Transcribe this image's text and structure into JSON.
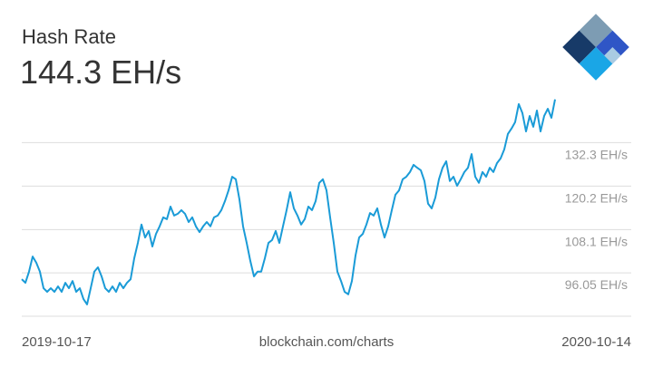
{
  "chart_data": {
    "type": "line",
    "title": "Hash Rate",
    "current_value": "144.3 EH/s",
    "source": "blockchain.com/charts",
    "xticks": [
      "2019-10-17",
      "2020-10-14"
    ],
    "color": "#1a9bd7",
    "values": [
      94.3,
      93.3,
      96.4,
      100.6,
      98.9,
      96.4,
      91.8,
      90.8,
      91.8,
      90.8,
      92.3,
      90.8,
      93.3,
      91.8,
      93.8,
      90.8,
      91.8,
      88.8,
      87.3,
      91.8,
      96.4,
      97.6,
      95.1,
      91.8,
      90.8,
      92.3,
      90.8,
      93.3,
      91.8,
      93.3,
      94.3,
      100.1,
      104.4,
      109.5,
      105.9,
      107.7,
      103.4,
      106.9,
      109.0,
      111.5,
      111.0,
      114.5,
      112.0,
      112.5,
      113.5,
      112.5,
      110.2,
      111.5,
      109.0,
      107.4,
      109.0,
      110.2,
      109.0,
      111.5,
      112.0,
      113.5,
      116.0,
      119.0,
      122.8,
      122.1,
      116.5,
      109.0,
      104.4,
      99.4,
      95.1,
      96.4,
      96.4,
      100.1,
      104.4,
      105.2,
      107.7,
      104.4,
      109.0,
      113.5,
      118.5,
      114.0,
      112.0,
      109.5,
      111.0,
      114.5,
      113.5,
      116.0,
      121.1,
      122.1,
      119.0,
      111.5,
      104.4,
      96.4,
      93.8,
      90.8,
      90.1,
      93.8,
      100.9,
      105.9,
      106.9,
      109.5,
      112.7,
      112.0,
      114.0,
      109.5,
      105.9,
      109.0,
      113.5,
      117.8,
      119.0,
      122.1,
      122.8,
      124.1,
      126.1,
      125.3,
      124.6,
      121.6,
      115.3,
      114.0,
      117.0,
      122.1,
      125.3,
      127.1,
      121.6,
      122.8,
      120.3,
      122.1,
      124.1,
      125.3,
      129.1,
      122.8,
      121.1,
      124.1,
      122.8,
      125.3,
      124.1,
      126.6,
      127.9,
      130.4,
      134.7,
      136.2,
      138.0,
      143.0,
      140.5,
      135.4,
      139.7,
      136.7,
      141.2,
      135.4,
      139.7,
      141.7,
      139.2,
      144.3
    ],
    "ylim": [
      84,
      147
    ],
    "yticks": [
      {
        "value": 96.05,
        "label": "96.05 EH/s"
      },
      {
        "value": 108.1,
        "label": "108.1 EH/s"
      },
      {
        "value": 120.2,
        "label": "120.2 EH/s"
      },
      {
        "value": 132.3,
        "label": "132.3 EH/s"
      }
    ],
    "grid": true
  }
}
